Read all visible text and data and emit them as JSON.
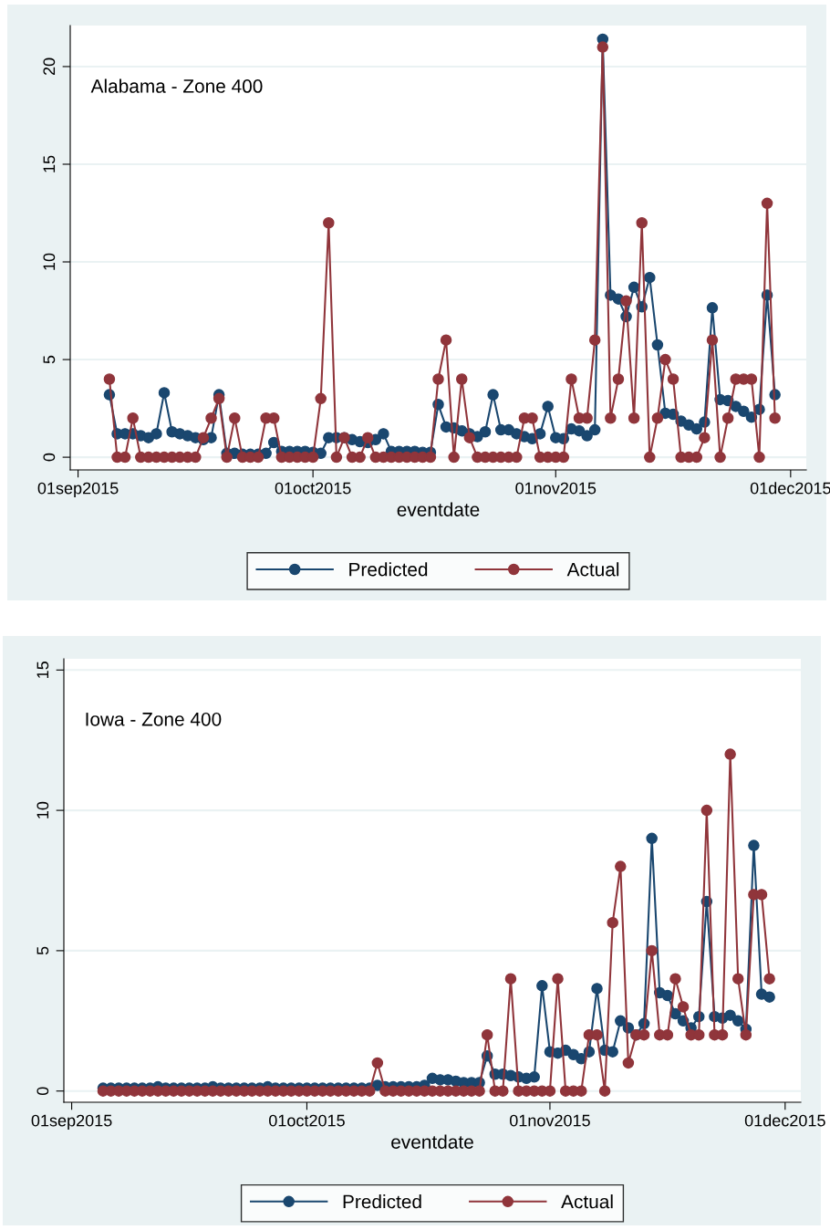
{
  "chart_data": [
    {
      "type": "line",
      "annotations": [
        "Alabama - Zone 400"
      ],
      "xlabel": "eventdate",
      "x": [
        "2015-09-05",
        "2015-09-06",
        "2015-09-07",
        "2015-09-08",
        "2015-09-09",
        "2015-09-10",
        "2015-09-11",
        "2015-09-12",
        "2015-09-13",
        "2015-09-14",
        "2015-09-15",
        "2015-09-16",
        "2015-09-17",
        "2015-09-18",
        "2015-09-19",
        "2015-09-20",
        "2015-09-21",
        "2015-09-22",
        "2015-09-23",
        "2015-09-24",
        "2015-09-25",
        "2015-09-26",
        "2015-09-27",
        "2015-09-28",
        "2015-09-29",
        "2015-09-30",
        "2015-10-01",
        "2015-10-02",
        "2015-10-03",
        "2015-10-04",
        "2015-10-05",
        "2015-10-06",
        "2015-10-07",
        "2015-10-08",
        "2015-10-09",
        "2015-10-10",
        "2015-10-11",
        "2015-10-12",
        "2015-10-13",
        "2015-10-14",
        "2015-10-15",
        "2015-10-16",
        "2015-10-17",
        "2015-10-18",
        "2015-10-19",
        "2015-10-20",
        "2015-10-21",
        "2015-10-22",
        "2015-10-23",
        "2015-10-24",
        "2015-10-25",
        "2015-10-26",
        "2015-10-27",
        "2015-10-28",
        "2015-10-29",
        "2015-10-30",
        "2015-10-31",
        "2015-11-01",
        "2015-11-02",
        "2015-11-03",
        "2015-11-04",
        "2015-11-05",
        "2015-11-06",
        "2015-11-07",
        "2015-11-08",
        "2015-11-09",
        "2015-11-10",
        "2015-11-11",
        "2015-11-12",
        "2015-11-13",
        "2015-11-14",
        "2015-11-15",
        "2015-11-16",
        "2015-11-17",
        "2015-11-18",
        "2015-11-19",
        "2015-11-20",
        "2015-11-21",
        "2015-11-22",
        "2015-11-23",
        "2015-11-24",
        "2015-11-25",
        "2015-11-26",
        "2015-11-27",
        "2015-11-28",
        "2015-11-29"
      ],
      "series": [
        {
          "name": "Predicted",
          "color": "#1a476f",
          "values": [
            3.2,
            1.2,
            1.2,
            1.2,
            1.1,
            1.0,
            1.2,
            3.3,
            1.3,
            1.2,
            1.1,
            1.0,
            0.9,
            1.0,
            3.2,
            0.2,
            0.2,
            0.15,
            0.15,
            0.15,
            0.2,
            0.75,
            0.3,
            0.3,
            0.3,
            0.3,
            0.25,
            0.2,
            1.0,
            1.0,
            1.0,
            0.9,
            0.8,
            0.75,
            0.9,
            1.2,
            0.3,
            0.3,
            0.3,
            0.3,
            0.25,
            0.25,
            2.7,
            1.55,
            1.5,
            1.35,
            1.2,
            1.05,
            1.3,
            3.2,
            1.4,
            1.4,
            1.2,
            1.05,
            0.95,
            1.2,
            2.6,
            1.0,
            0.95,
            1.45,
            1.35,
            1.1,
            1.4,
            21.4,
            8.3,
            8.1,
            7.2,
            8.7,
            7.7,
            9.2,
            5.75,
            2.25,
            2.2,
            1.85,
            1.65,
            1.45,
            1.8,
            7.65,
            2.95,
            2.9,
            2.6,
            2.35,
            2.05,
            2.45,
            8.3,
            3.2
          ]
        },
        {
          "name": "Actual",
          "color": "#90353b",
          "values": [
            4,
            0,
            0,
            2,
            0,
            0,
            0,
            0,
            0,
            0,
            0,
            0,
            1,
            2,
            3,
            0,
            2,
            0,
            0,
            0,
            2,
            2,
            0,
            0,
            0,
            0,
            0,
            3,
            12,
            0,
            1,
            0,
            0,
            1,
            0,
            0,
            0,
            0,
            0,
            0,
            0,
            0,
            4,
            6,
            0,
            4,
            1,
            0,
            0,
            0,
            0,
            0,
            0,
            2,
            2,
            0,
            0,
            0,
            0,
            4,
            2,
            2,
            6,
            21,
            2,
            4,
            8,
            2,
            12,
            0,
            2,
            5,
            4,
            0,
            0,
            0,
            1,
            6,
            0,
            2,
            4,
            4,
            4,
            0,
            13,
            2
          ]
        }
      ],
      "xlim": [
        "2015-08-31",
        "2015-12-03"
      ],
      "xticks": [
        {
          "value": "2015-09-01",
          "label": "01sep2015"
        },
        {
          "value": "2015-10-01",
          "label": "01oct2015"
        },
        {
          "value": "2015-11-01",
          "label": "01nov2015"
        },
        {
          "value": "2015-12-01",
          "label": "01dec2015"
        }
      ],
      "ylim": [
        -0.65,
        22.1
      ],
      "yticks": [
        0,
        5,
        10,
        15,
        20
      ],
      "grid": "y",
      "legend": "bottom",
      "marker": "circle",
      "line_style": "solid"
    },
    {
      "type": "line",
      "annotations": [
        "Iowa - Zone 400"
      ],
      "xlabel": "eventdate",
      "x": [
        "2015-09-05",
        "2015-09-06",
        "2015-09-07",
        "2015-09-08",
        "2015-09-09",
        "2015-09-10",
        "2015-09-11",
        "2015-09-12",
        "2015-09-13",
        "2015-09-14",
        "2015-09-15",
        "2015-09-16",
        "2015-09-17",
        "2015-09-18",
        "2015-09-19",
        "2015-09-20",
        "2015-09-21",
        "2015-09-22",
        "2015-09-23",
        "2015-09-24",
        "2015-09-25",
        "2015-09-26",
        "2015-09-27",
        "2015-09-28",
        "2015-09-29",
        "2015-09-30",
        "2015-10-01",
        "2015-10-02",
        "2015-10-03",
        "2015-10-04",
        "2015-10-05",
        "2015-10-06",
        "2015-10-07",
        "2015-10-08",
        "2015-10-09",
        "2015-10-10",
        "2015-10-11",
        "2015-10-12",
        "2015-10-13",
        "2015-10-14",
        "2015-10-15",
        "2015-10-16",
        "2015-10-17",
        "2015-10-18",
        "2015-10-19",
        "2015-10-20",
        "2015-10-21",
        "2015-10-22",
        "2015-10-23",
        "2015-10-24",
        "2015-10-25",
        "2015-10-26",
        "2015-10-27",
        "2015-10-28",
        "2015-10-29",
        "2015-10-30",
        "2015-10-31",
        "2015-11-01",
        "2015-11-02",
        "2015-11-03",
        "2015-11-04",
        "2015-11-05",
        "2015-11-06",
        "2015-11-07",
        "2015-11-08",
        "2015-11-09",
        "2015-11-10",
        "2015-11-11",
        "2015-11-12",
        "2015-11-13",
        "2015-11-14",
        "2015-11-15",
        "2015-11-16",
        "2015-11-17",
        "2015-11-18",
        "2015-11-19",
        "2015-11-20",
        "2015-11-21",
        "2015-11-22",
        "2015-11-23",
        "2015-11-24",
        "2015-11-25",
        "2015-11-26",
        "2015-11-27",
        "2015-11-28",
        "2015-11-29"
      ],
      "series": [
        {
          "name": "Predicted",
          "color": "#1a476f",
          "values": [
            0.1,
            0.1,
            0.1,
            0.1,
            0.1,
            0.1,
            0.1,
            0.15,
            0.1,
            0.1,
            0.1,
            0.1,
            0.1,
            0.1,
            0.15,
            0.1,
            0.1,
            0.1,
            0.1,
            0.1,
            0.1,
            0.15,
            0.1,
            0.1,
            0.1,
            0.1,
            0.1,
            0.1,
            0.1,
            0.1,
            0.1,
            0.1,
            0.1,
            0.1,
            0.1,
            0.2,
            0.15,
            0.15,
            0.15,
            0.15,
            0.15,
            0.2,
            0.45,
            0.4,
            0.4,
            0.35,
            0.3,
            0.3,
            0.3,
            1.25,
            0.6,
            0.6,
            0.55,
            0.5,
            0.45,
            0.5,
            3.75,
            1.4,
            1.35,
            1.45,
            1.3,
            1.15,
            1.4,
            3.65,
            1.45,
            1.4,
            2.5,
            2.25,
            2.0,
            2.4,
            9.0,
            3.5,
            3.4,
            2.75,
            2.5,
            2.25,
            2.65,
            6.75,
            2.65,
            2.6,
            2.7,
            2.5,
            2.2,
            8.75,
            3.45,
            3.35
          ]
        },
        {
          "name": "Actual",
          "color": "#90353b",
          "values": [
            0,
            0,
            0,
            0,
            0,
            0,
            0,
            0,
            0,
            0,
            0,
            0,
            0,
            0,
            0,
            0,
            0,
            0,
            0,
            0,
            0,
            0,
            0,
            0,
            0,
            0,
            0,
            0,
            0,
            0,
            0,
            0,
            0,
            0,
            0,
            1,
            0,
            0,
            0,
            0,
            0,
            0,
            0,
            0,
            0,
            0,
            0,
            0,
            0,
            2,
            0,
            0,
            4,
            0,
            0,
            0,
            0,
            0,
            4,
            0,
            0,
            0,
            2,
            2,
            0,
            6,
            8,
            1,
            2,
            2,
            5,
            2,
            2,
            4,
            3,
            2,
            2,
            10,
            2,
            2,
            12,
            4,
            2,
            7,
            7,
            4
          ]
        }
      ],
      "xlim": [
        "2015-08-31",
        "2015-12-03"
      ],
      "xticks": [
        {
          "value": "2015-09-01",
          "label": "01sep2015"
        },
        {
          "value": "2015-10-01",
          "label": "01oct2015"
        },
        {
          "value": "2015-11-01",
          "label": "01nov2015"
        },
        {
          "value": "2015-12-01",
          "label": "01dec2015"
        }
      ],
      "ylim": [
        -0.4,
        15.4
      ],
      "yticks": [
        0,
        5,
        10,
        15
      ],
      "grid": "y",
      "legend": "bottom",
      "marker": "circle",
      "line_style": "solid"
    }
  ]
}
